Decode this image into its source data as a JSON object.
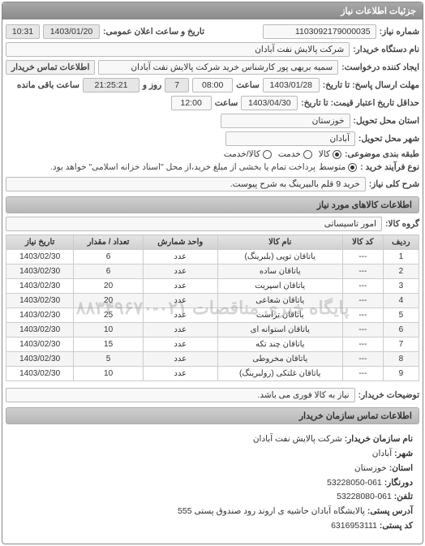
{
  "panel": {
    "title": "جزئیات اطلاعات نیاز"
  },
  "header": {
    "labels": {
      "need_no": "شماره نیاز:",
      "announce_datetime": "تاریخ و ساعت اعلان عمومی:",
      "buyer_org": "نام دستگاه خریدار:",
      "requester": "ایجاد کننده درخواست:",
      "buyer_contact": "اطلاعات تماس خریدار",
      "reply_deadline_to": "مهلت ارسال پاسخ: تا تاریخ:",
      "at_time": "ساعت",
      "days": "روز و",
      "remaining": "ساعت باقی مانده",
      "validity_to": "حداقل تاریخ اعتبار قیمت: تا تاریخ:",
      "province": "استان محل تحویل:",
      "city": "شهر محل تحویل:",
      "budget_class": "طبقه بندی موضوعی:",
      "process_type": "نوع فرآیند خرید :",
      "need_title": "شرح کلی نیاز:"
    },
    "values": {
      "need_no": "1103092179000035",
      "announce_date": "1403/01/20",
      "announce_time": "10:31",
      "buyer_org": "شرکت پالایش نفت آبادان",
      "requester": "سمیه بریهی پور کارشناس خرید شرکت پالایش نفت آبادان",
      "buyer_contact": "",
      "deadline_date": "1403/01/28",
      "deadline_time": "08:00",
      "days_left": "7",
      "time_left": "21:25:21",
      "validity_date": "1403/04/30",
      "validity_time": "12:00",
      "province": "خوزستان",
      "city": "آبادان",
      "need_title": "خرید 9 قلم بالبیرینگ به شرح پیوست."
    },
    "budget_options": [
      {
        "label": "کالا",
        "key": "goods",
        "checked": true
      },
      {
        "label": "خدمت",
        "key": "service",
        "checked": false
      },
      {
        "label": "کالا/خدمت",
        "key": "both",
        "checked": false
      }
    ],
    "process_options": [
      {
        "label": "متوسط",
        "key": "medium",
        "checked": true
      }
    ],
    "process_note": "پرداخت تمام یا بخشی از مبلغ خرید،از محل \"اسناد خزانه اسلامی\" خواهد بود."
  },
  "items_section": {
    "title": "اطلاعات کالاهای مورد نیاز",
    "group_label": "گروه کالا:",
    "group_value": "امور تاسیساتی",
    "columns": [
      "ردیف",
      "کد کالا",
      "نام کالا",
      "واحد شمارش",
      "تعداد / مقدار",
      "تاریخ نیاز"
    ],
    "rows": [
      [
        "1",
        "---",
        "یاتاقان توپی (بلبرینگ)",
        "عدد",
        "6",
        "1403/02/30"
      ],
      [
        "2",
        "---",
        "یاتاقان ساده",
        "عدد",
        "6",
        "1403/02/30"
      ],
      [
        "3",
        "---",
        "یاتاقان اسپریت",
        "عدد",
        "20",
        "1403/02/30"
      ],
      [
        "4",
        "---",
        "یاتاقان شعاعی",
        "عدد",
        "20",
        "1403/02/30"
      ],
      [
        "5",
        "---",
        "یاتاقان تراست",
        "عدد",
        "25",
        "1403/02/30"
      ],
      [
        "6",
        "---",
        "یاتاقان استوانه ای",
        "عدد",
        "10",
        "1403/02/30"
      ],
      [
        "7",
        "---",
        "یاتاقان چند تکه",
        "عدد",
        "15",
        "1403/02/30"
      ],
      [
        "8",
        "---",
        "یاتاقان مخروطی",
        "عدد",
        "5",
        "1403/02/30"
      ],
      [
        "9",
        "---",
        "یاتاقان غلتکی (رولبرینگ)",
        "عدد",
        "10",
        "1403/02/30"
      ]
    ],
    "watermark": "پایگاه خبری مناقصات ۰۲۱-۸۸۳۴۹۶۷۰"
  },
  "buyer_notes": {
    "title": "توضیحات خریدار:",
    "text": "نیاز به کالا فوری می باشد."
  },
  "contact": {
    "title": "اطلاعات تماس سازمان خریدار",
    "labels": {
      "org": "نام سازمان خریدار:",
      "city": "شهر:",
      "province": "استان:",
      "fax": "دورنگار:",
      "phone": "تلفن:",
      "address": "آدرس پستی:",
      "postal": "کد پستی:"
    },
    "values": {
      "org": "شرکت پالایش نفت آبادان",
      "city": "آبادان",
      "province": "خوزستان",
      "fax": "061-53228050",
      "phone": "061-53228080",
      "address": "پالایشگاه آبادان حاشیه ی اروند رود صندوق پستی 555",
      "postal": "6316953111"
    }
  },
  "colors": {
    "header_grad_top": "#a8a8a8",
    "header_grad_bot": "#8a8a8a",
    "border": "#888888",
    "input_bg": "#f8f8f8",
    "th_bg_top": "#e4e4e4",
    "th_bg_bot": "#d0d0d0",
    "row_alt": "#f5f5f5"
  }
}
